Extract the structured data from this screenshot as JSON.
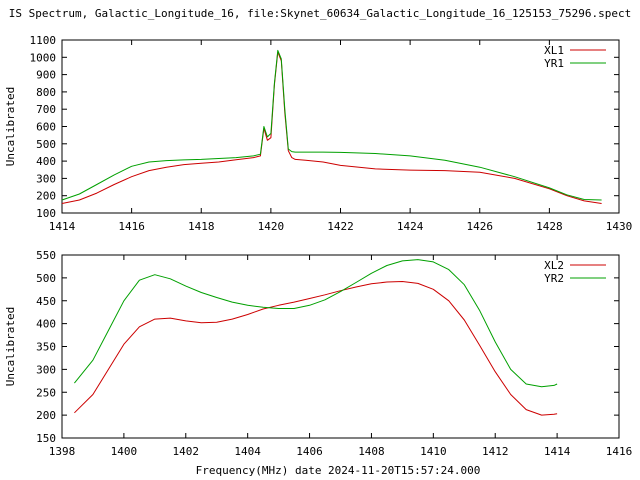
{
  "title": "IS Spectrum, Galactic_Longitude_16, file:Skynet_60634_Galactic_Longitude_16_125153_75296.spect",
  "xlabel": "Frequency(MHz) date 2024-11-20T15:57:24.000",
  "chart_data": [
    {
      "type": "line",
      "title": "IS Spectrum, Galactic_Longitude_16, file:Skynet_60634_Galactic_Longitude_16_125153_75296.spect",
      "xlabel": "",
      "ylabel": "Uncalibrated",
      "xlim": [
        1414,
        1430
      ],
      "ylim": [
        100,
        1100
      ],
      "xticks": [
        1414,
        1416,
        1418,
        1420,
        1422,
        1424,
        1426,
        1428,
        1430
      ],
      "yticks": [
        100,
        200,
        300,
        400,
        500,
        600,
        700,
        800,
        900,
        1000,
        1100
      ],
      "legend": "top-right",
      "grid": false,
      "series": [
        {
          "name": "XL1",
          "color": "#cc0000",
          "x": [
            1414.0,
            1414.5,
            1415.0,
            1415.5,
            1416.0,
            1416.5,
            1417.0,
            1417.5,
            1418.0,
            1418.5,
            1419.0,
            1419.5,
            1419.7,
            1419.8,
            1419.9,
            1420.0,
            1420.1,
            1420.2,
            1420.3,
            1420.4,
            1420.5,
            1420.6,
            1420.7,
            1421.0,
            1421.5,
            1422.0,
            1423.0,
            1424.0,
            1425.0,
            1426.0,
            1427.0,
            1428.0,
            1428.5,
            1429.0,
            1429.5
          ],
          "y": [
            155,
            175,
            215,
            265,
            310,
            345,
            365,
            380,
            388,
            395,
            408,
            420,
            430,
            590,
            520,
            535,
            840,
            1030,
            980,
            680,
            460,
            420,
            410,
            405,
            395,
            375,
            355,
            348,
            345,
            335,
            300,
            240,
            200,
            170,
            155
          ]
        },
        {
          "name": "YR1",
          "color": "#00a000",
          "x": [
            1414.0,
            1414.5,
            1415.0,
            1415.5,
            1416.0,
            1416.5,
            1417.0,
            1417.5,
            1418.0,
            1418.5,
            1419.0,
            1419.5,
            1419.7,
            1419.8,
            1419.9,
            1420.0,
            1420.1,
            1420.2,
            1420.3,
            1420.4,
            1420.5,
            1420.6,
            1420.7,
            1421.0,
            1421.5,
            1422.0,
            1423.0,
            1424.0,
            1425.0,
            1426.0,
            1427.0,
            1428.0,
            1428.5,
            1429.0,
            1429.5
          ],
          "y": [
            175,
            210,
            265,
            320,
            370,
            395,
            403,
            407,
            410,
            415,
            420,
            430,
            440,
            600,
            540,
            560,
            850,
            1040,
            990,
            700,
            470,
            455,
            452,
            452,
            452,
            450,
            444,
            430,
            405,
            365,
            310,
            245,
            205,
            178,
            175
          ]
        }
      ]
    },
    {
      "type": "line",
      "title": "",
      "xlabel": "Frequency(MHz) date 2024-11-20T15:57:24.000",
      "ylabel": "Uncalibrated",
      "xlim": [
        1398,
        1416
      ],
      "ylim": [
        150,
        550
      ],
      "xticks": [
        1398,
        1400,
        1402,
        1404,
        1406,
        1408,
        1410,
        1412,
        1414,
        1416
      ],
      "yticks": [
        150,
        200,
        250,
        300,
        350,
        400,
        450,
        500,
        550
      ],
      "legend": "top-right",
      "grid": false,
      "series": [
        {
          "name": "XL2",
          "color": "#cc0000",
          "x": [
            1398.4,
            1399.0,
            1399.5,
            1400.0,
            1400.5,
            1401.0,
            1401.5,
            1402.0,
            1402.5,
            1403.0,
            1403.5,
            1404.0,
            1404.5,
            1405.0,
            1405.5,
            1406.0,
            1406.5,
            1407.0,
            1407.5,
            1408.0,
            1408.5,
            1409.0,
            1409.5,
            1410.0,
            1410.5,
            1411.0,
            1411.5,
            1412.0,
            1412.5,
            1413.0,
            1413.5,
            1413.9,
            1414.0
          ],
          "y": [
            205,
            245,
            300,
            355,
            393,
            410,
            412,
            406,
            402,
            403,
            410,
            420,
            432,
            440,
            447,
            455,
            463,
            472,
            480,
            487,
            491,
            492,
            488,
            475,
            450,
            408,
            352,
            295,
            245,
            212,
            200,
            202,
            203
          ]
        },
        {
          "name": "YR2",
          "color": "#00a000",
          "x": [
            1398.4,
            1399.0,
            1399.5,
            1400.0,
            1400.5,
            1401.0,
            1401.5,
            1402.0,
            1402.5,
            1403.0,
            1403.5,
            1404.0,
            1404.5,
            1405.0,
            1405.5,
            1406.0,
            1406.5,
            1407.0,
            1407.5,
            1408.0,
            1408.5,
            1409.0,
            1409.5,
            1410.0,
            1410.5,
            1411.0,
            1411.5,
            1412.0,
            1412.5,
            1413.0,
            1413.5,
            1413.9,
            1414.0
          ],
          "y": [
            270,
            320,
            385,
            450,
            495,
            507,
            498,
            482,
            468,
            457,
            447,
            440,
            436,
            433,
            433,
            440,
            452,
            470,
            490,
            510,
            527,
            537,
            540,
            535,
            518,
            485,
            428,
            360,
            300,
            268,
            262,
            265,
            268
          ]
        }
      ]
    }
  ]
}
